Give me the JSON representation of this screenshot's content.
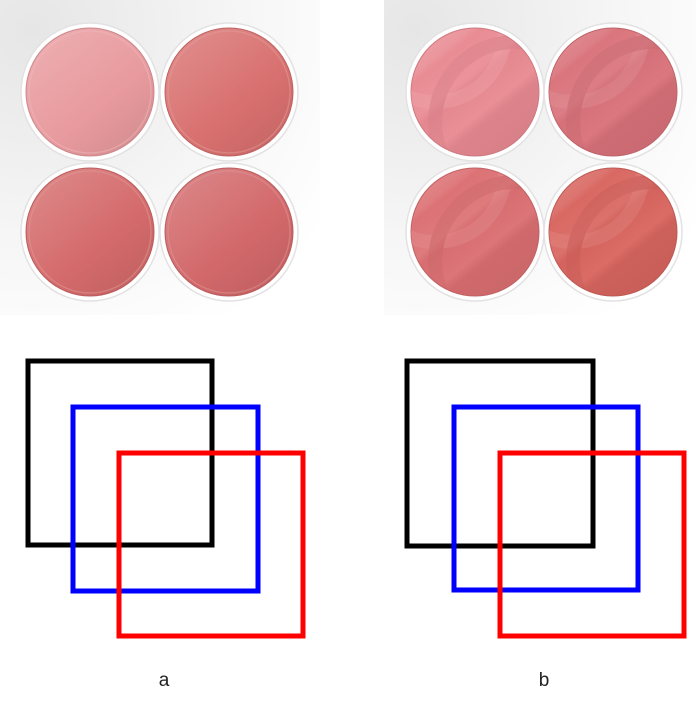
{
  "figure": {
    "panels": [
      {
        "id": "a",
        "caption": "a",
        "style": "smooth",
        "circles": [
          {
            "name": "top-left",
            "color": "#e89a9e"
          },
          {
            "name": "top-right",
            "color": "#d8706f"
          },
          {
            "name": "bottom-left",
            "color": "#d46a6b"
          },
          {
            "name": "bottom-right",
            "color": "#d2686a"
          }
        ],
        "squares": [
          {
            "name": "black-square",
            "color": "#000000"
          },
          {
            "name": "blue-square",
            "color": "#0000ff"
          },
          {
            "name": "red-square",
            "color": "#ff0000"
          }
        ]
      },
      {
        "id": "b",
        "caption": "b",
        "style": "banded",
        "circles": [
          {
            "name": "top-left",
            "color": "#e98a92"
          },
          {
            "name": "top-right",
            "color": "#d9727a"
          },
          {
            "name": "bottom-left",
            "color": "#db6f72"
          },
          {
            "name": "bottom-right",
            "color": "#d8655f"
          }
        ],
        "squares": [
          {
            "name": "black-square",
            "color": "#000000"
          },
          {
            "name": "blue-square",
            "color": "#0000ff"
          },
          {
            "name": "red-square",
            "color": "#ff0000"
          }
        ]
      }
    ]
  }
}
